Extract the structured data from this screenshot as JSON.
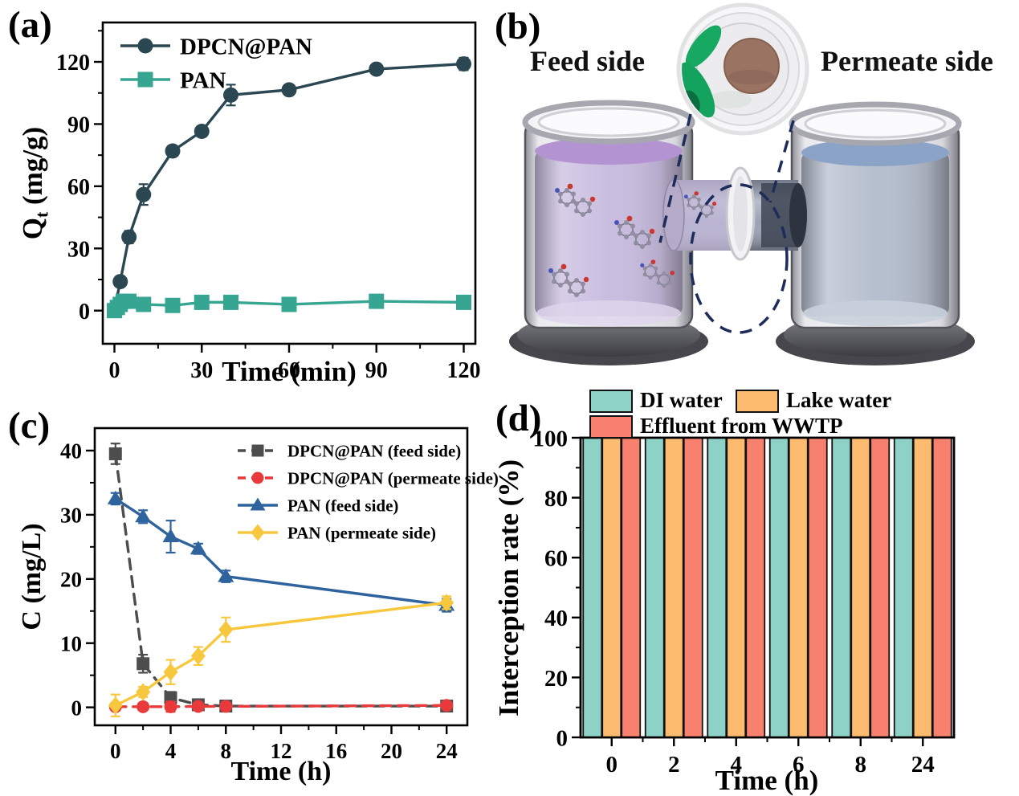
{
  "figure": {
    "background": "#ffffff",
    "panel_labels": {
      "a": "(a)",
      "b": "(b)",
      "c": "(c)",
      "d": "(d)"
    }
  },
  "panel_b": {
    "feed_label": "Feed side",
    "permeate_label": "Permeate side",
    "colors": {
      "feed_liquid": "#c9bddf",
      "feed_surface": "#b493d3",
      "permeate_liquid": "#b6bfce",
      "permeate_surface": "#8ba3c6",
      "membrane_disc": "#9b7363",
      "forceps_green": "#14a35f",
      "dashed_outline": "#1d2c5a"
    }
  },
  "chart_data": [
    {
      "panel": "a",
      "type": "line",
      "title": "",
      "xlabel": "Time (min)",
      "ylabel": {
        "pre": "Q",
        "sub": "t",
        "post": " (mg/g)"
      },
      "xlim": [
        -4,
        124
      ],
      "ylim": [
        -16,
        139
      ],
      "xticks": [
        0,
        30,
        60,
        90,
        120
      ],
      "xminor": [
        15,
        45,
        75,
        105
      ],
      "yticks": [
        0,
        30,
        60,
        90,
        120
      ],
      "yminor": [
        15,
        45,
        75,
        105,
        135
      ],
      "grid": false,
      "legend_position": "top-left",
      "series": [
        {
          "name": "DPCN@PAN",
          "color": "#2b4752",
          "marker": "circle",
          "dashed": false,
          "x": [
            0,
            2,
            5,
            10,
            20,
            30,
            40,
            60,
            90,
            120
          ],
          "y": [
            0.5,
            14,
            35.5,
            56,
            77,
            86.5,
            104,
            106.5,
            116.5,
            119
          ],
          "err": [
            1.5,
            2,
            3,
            5,
            2.5,
            2.5,
            5,
            2,
            2,
            3
          ]
        },
        {
          "name": "PAN",
          "color": "#36a692",
          "marker": "square",
          "dashed": false,
          "x": [
            0,
            1,
            2,
            3,
            5,
            10,
            20,
            30,
            40,
            60,
            90,
            120
          ],
          "y": [
            0,
            1.5,
            3,
            4.5,
            4.5,
            3,
            2.5,
            4,
            4,
            3,
            4.5,
            4
          ],
          "err": [
            2,
            1.5,
            1.5,
            1.5,
            2,
            2.5,
            2,
            1.5,
            1.5,
            1.5,
            1.5,
            2
          ]
        }
      ]
    },
    {
      "panel": "c",
      "type": "line",
      "title": "",
      "xlabel": "Time (h)",
      "ylabel": {
        "pre": "C",
        "sub": "",
        "post": " (mg/L)"
      },
      "xlim": [
        -1.5,
        25.5
      ],
      "ylim": [
        -2.8,
        43.5
      ],
      "xticks": [
        0,
        4,
        8,
        12,
        16,
        20,
        24
      ],
      "xminor": [
        2,
        6,
        10,
        14,
        18,
        22
      ],
      "yticks": [
        0,
        10,
        20,
        30,
        40
      ],
      "yminor": [
        5,
        15,
        25,
        35
      ],
      "grid": false,
      "legend_position": "top-right",
      "series": [
        {
          "name": "DPCN@PAN (feed side)",
          "color": "#4d4d4d",
          "marker": "square",
          "dashed": true,
          "x": [
            0,
            2,
            4,
            6,
            8,
            24
          ],
          "y": [
            39.5,
            6.8,
            1.5,
            0.4,
            0.2,
            0.2
          ],
          "err": [
            1.6,
            1.4,
            0.9,
            0.5,
            0.4,
            0.3
          ]
        },
        {
          "name": "DPCN@PAN (permeate side)",
          "color": "#e8393b",
          "marker": "circle",
          "dashed": true,
          "x": [
            0,
            2,
            4,
            6,
            8,
            24
          ],
          "y": [
            0.1,
            0.1,
            0.1,
            0.15,
            0.15,
            0.3
          ],
          "err": [
            0.3,
            0.3,
            0.8,
            0.5,
            0.3,
            0.4
          ]
        },
        {
          "name": "PAN (feed side)",
          "color": "#2f639e",
          "marker": "triangle",
          "dashed": false,
          "x": [
            0,
            2,
            4,
            6,
            8,
            24
          ],
          "y": [
            32.5,
            29.7,
            26.6,
            24.7,
            20.4,
            15.9
          ],
          "err": [
            0.9,
            1.0,
            2.5,
            0.8,
            0.9,
            1.0
          ]
        },
        {
          "name": "PAN (permeate side)",
          "color": "#f7c83e",
          "marker": "diamond",
          "dashed": false,
          "x": [
            0,
            2,
            4,
            6,
            8,
            24
          ],
          "y": [
            0.3,
            2.4,
            5.5,
            8.0,
            12.1,
            16.3
          ],
          "err": [
            1.7,
            0.8,
            1.9,
            1.4,
            1.9,
            1.0
          ]
        }
      ]
    },
    {
      "panel": "d",
      "type": "bar",
      "title": "",
      "xlabel": "Time (h)",
      "ylabel": {
        "pre": "Interception rate (%)",
        "sub": "",
        "post": ""
      },
      "categories": [
        "0",
        "2",
        "4",
        "6",
        "8",
        "24"
      ],
      "ylim": [
        0,
        100
      ],
      "yticks": [
        0,
        20,
        40,
        60,
        80,
        100
      ],
      "yminor": [
        10,
        30,
        50,
        70,
        90
      ],
      "grid": false,
      "legend_position": "top",
      "series": [
        {
          "name": "DI water",
          "color": "#8ed1c6",
          "values": [
            100,
            100,
            100,
            100,
            100,
            100
          ]
        },
        {
          "name": "Lake water",
          "color": "#fcbb6f",
          "values": [
            100,
            100,
            100,
            100,
            100,
            100
          ]
        },
        {
          "name": "Effluent from WWTP",
          "color": "#f8806e",
          "values": [
            100,
            100,
            100,
            100,
            100,
            100
          ]
        }
      ]
    }
  ]
}
